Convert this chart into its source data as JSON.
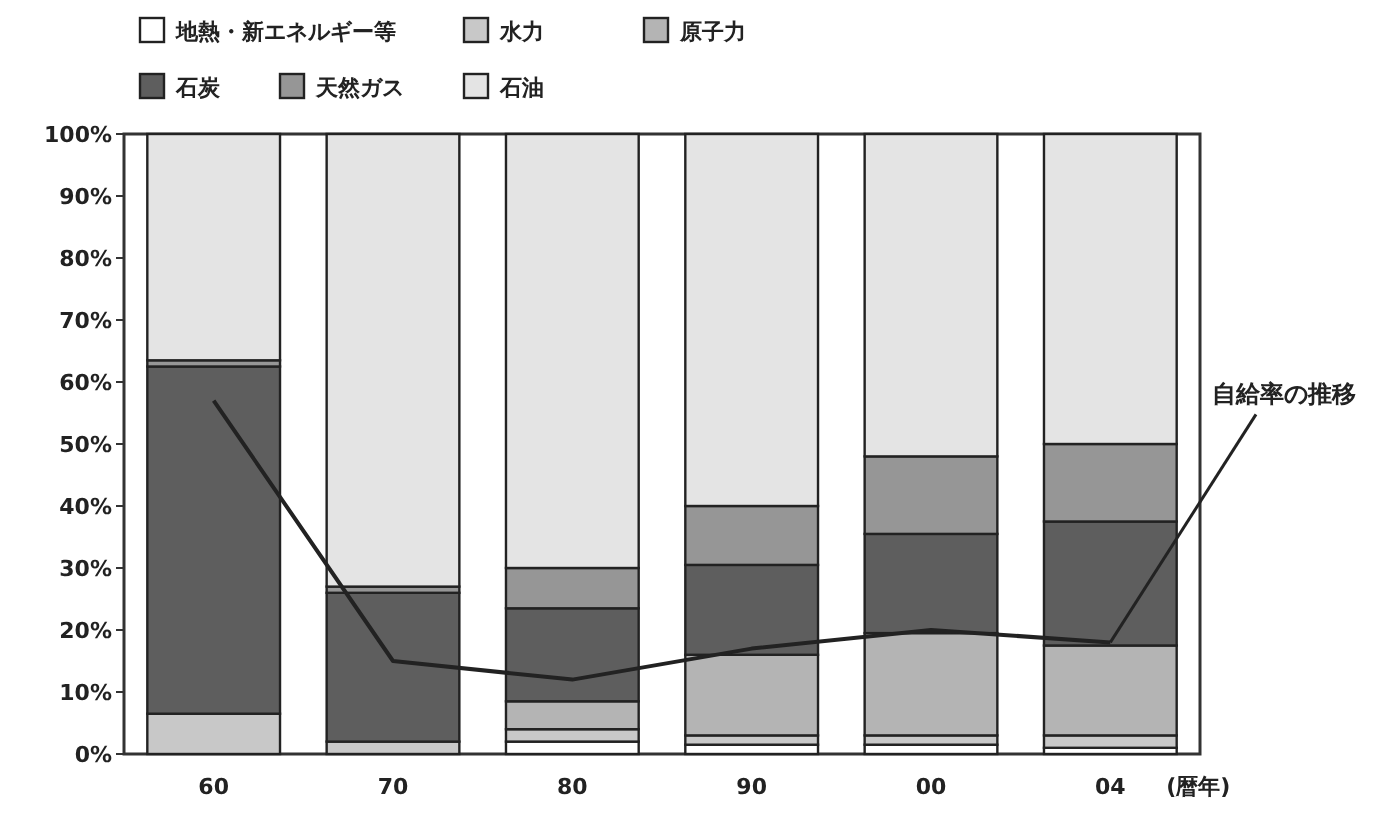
{
  "chart_data": {
    "type": "bar",
    "stacked": true,
    "legend": "top",
    "xlabel": "(暦年)",
    "categories": [
      "60",
      "70",
      "80",
      "90",
      "00",
      "04"
    ],
    "ylim": [
      0,
      100
    ],
    "yticks": [
      {
        "value": 0,
        "label": "0%"
      },
      {
        "value": 10,
        "label": "10%"
      },
      {
        "value": 20,
        "label": "20%"
      },
      {
        "value": 30,
        "label": "30%"
      },
      {
        "value": 40,
        "label": "40%"
      },
      {
        "value": 50,
        "label": "50%"
      },
      {
        "value": 60,
        "label": "60%"
      },
      {
        "value": 70,
        "label": "70%"
      },
      {
        "value": 80,
        "label": "80%"
      },
      {
        "value": 90,
        "label": "90%"
      },
      {
        "value": 100,
        "label": "100%"
      }
    ],
    "series": [
      {
        "name": "地熱・新エネルギー等",
        "color": "#ffffff",
        "values": [
          0,
          0,
          2,
          1.5,
          1.5,
          1
        ]
      },
      {
        "name": "水力",
        "color": "#c8c8c8",
        "values": [
          6.5,
          2,
          2,
          1.5,
          1.5,
          2
        ]
      },
      {
        "name": "原子力",
        "color": "#b4b4b4",
        "values": [
          0,
          0,
          4.5,
          13,
          16.5,
          14.5
        ]
      },
      {
        "name": "石炭",
        "color": "#5e5e5e",
        "values": [
          56,
          24,
          15,
          14.5,
          16,
          20
        ]
      },
      {
        "name": "天然ガス",
        "color": "#969696",
        "values": [
          1,
          1,
          6.5,
          9.5,
          12.5,
          12.5
        ]
      },
      {
        "name": "石油",
        "color": "#e4e4e4",
        "values": [
          36.5,
          73,
          70,
          60,
          52,
          50
        ]
      },
      {
        "type": "line",
        "color": "#222222",
        "values": [
          57,
          15,
          12,
          17,
          20,
          18
        ]
      }
    ],
    "annotations": [
      {
        "text": "自給率の推移",
        "x": "04",
        "y": 18
      }
    ]
  }
}
